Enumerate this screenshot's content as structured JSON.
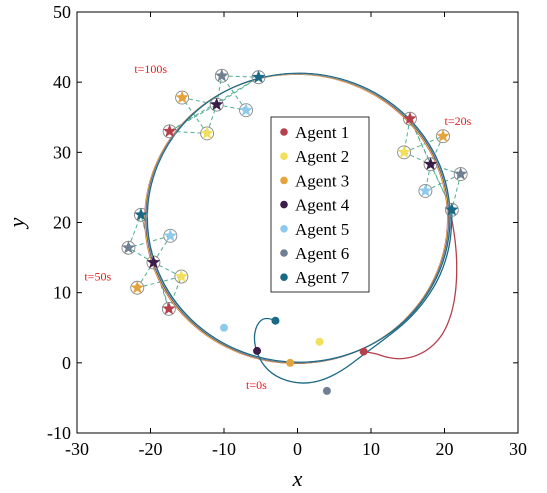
{
  "chart_data": {
    "type": "scatter",
    "title": "",
    "xlabel": "x",
    "ylabel": "y",
    "xlim": [
      -30,
      30
    ],
    "ylim": [
      -10,
      50
    ],
    "xticks": [
      -30,
      -20,
      -10,
      0,
      10,
      20,
      30
    ],
    "yticks": [
      -10,
      0,
      10,
      20,
      30,
      40,
      50
    ],
    "xtick_labels": [
      "-30",
      "-20",
      "-10",
      "0",
      "10",
      "20",
      "30"
    ],
    "ytick_labels": [
      "-10",
      "0",
      "10",
      "20",
      "30",
      "40",
      "50"
    ],
    "grid": false,
    "legend_position": "center",
    "colors": {
      "annotation": "#e8191b",
      "formation_link": "#4caf8f",
      "circle": "#555555"
    },
    "reference_circle": {
      "center": [
        0,
        20.6
      ],
      "radius": 20.6
    },
    "series": [
      {
        "name": "Agent 1",
        "color": "#b5404b",
        "initial": [
          9,
          1.6
        ],
        "t20": [
          15.3,
          34.8
        ],
        "t50": [
          -17.5,
          7.7
        ],
        "t100": [
          -17.4,
          33.0
        ],
        "trajectory": [
          [
            9,
            1.6
          ],
          [
            10.5,
            1.4
          ],
          [
            12,
            0.8
          ],
          [
            14,
            0.5
          ],
          [
            16,
            0.9
          ],
          [
            18,
            2.0
          ],
          [
            19.8,
            4.0
          ],
          [
            21,
            7.0
          ],
          [
            21.6,
            10.5
          ],
          [
            21.7,
            14.5
          ],
          [
            21.4,
            18.0
          ],
          [
            20.9,
            21.0
          ]
        ]
      },
      {
        "name": "Agent 2",
        "color": "#f2e05c",
        "initial": [
          3,
          3
        ],
        "t20": [
          14.5,
          30.0
        ],
        "t50": [
          -15.8,
          12.3
        ],
        "t100": [
          -12.3,
          32.7
        ]
      },
      {
        "name": "Agent 3",
        "color": "#e5a33b",
        "initial": [
          -1,
          0
        ],
        "t20": [
          19.8,
          32.3
        ],
        "t50": [
          -21.8,
          10.7
        ],
        "t100": [
          -15.7,
          37.8
        ]
      },
      {
        "name": "Agent 4",
        "color": "#3b1d4a",
        "initial": [
          -5.5,
          1.7
        ],
        "t20": [
          18.1,
          28.3
        ],
        "t50": [
          -19.6,
          14.3
        ],
        "t100": [
          -11.0,
          36.8
        ]
      },
      {
        "name": "Agent 5",
        "color": "#8fcaec",
        "initial": [
          -10,
          5
        ],
        "t20": [
          17.4,
          24.5
        ],
        "t50": [
          -17.3,
          18.1
        ],
        "t100": [
          -7.0,
          36.0
        ]
      },
      {
        "name": "Agent 6",
        "color": "#6f8093",
        "initial": [
          4,
          -4
        ],
        "t20": [
          22.2,
          26.9
        ],
        "t50": [
          -23.0,
          16.4
        ],
        "t100": [
          -10.3,
          40.9
        ]
      },
      {
        "name": "Agent 7",
        "color": "#1a6a86",
        "initial": [
          -3,
          6
        ],
        "t20": [
          21.0,
          21.8
        ],
        "t50": [
          -21.3,
          21.1
        ],
        "t100": [
          -5.3,
          40.7
        ],
        "trajectory": [
          [
            -3,
            6
          ],
          [
            -4.3,
            6.6
          ],
          [
            -5.6,
            5.5
          ],
          [
            -6,
            3
          ],
          [
            -5,
            0
          ],
          [
            -3,
            -2
          ],
          [
            0,
            -3
          ],
          [
            3,
            -2.7
          ],
          [
            6,
            -1.2
          ],
          [
            9,
            1.2
          ],
          [
            12,
            3.5
          ],
          [
            15,
            6
          ],
          [
            17.5,
            9
          ],
          [
            19.5,
            12.5
          ],
          [
            20.7,
            16.5
          ],
          [
            21.0,
            20.0
          ],
          [
            21.0,
            21.8
          ]
        ]
      }
    ],
    "formation_links": [
      [
        1,
        2
      ],
      [
        2,
        3
      ],
      [
        3,
        4
      ],
      [
        4,
        5
      ],
      [
        5,
        6
      ],
      [
        6,
        7
      ],
      [
        7,
        1
      ],
      [
        1,
        4
      ],
      [
        4,
        7
      ],
      [
        2,
        4
      ],
      [
        4,
        6
      ]
    ],
    "annotations": [
      {
        "text": "t=0s",
        "x": -7.0,
        "y": -3.7
      },
      {
        "text": "t=20s",
        "x": 20.0,
        "y": 33.9
      },
      {
        "text": "t=50s",
        "x": -29.0,
        "y": 11.7
      },
      {
        "text": "t=100s",
        "x": -22.2,
        "y": 41.3
      }
    ]
  }
}
